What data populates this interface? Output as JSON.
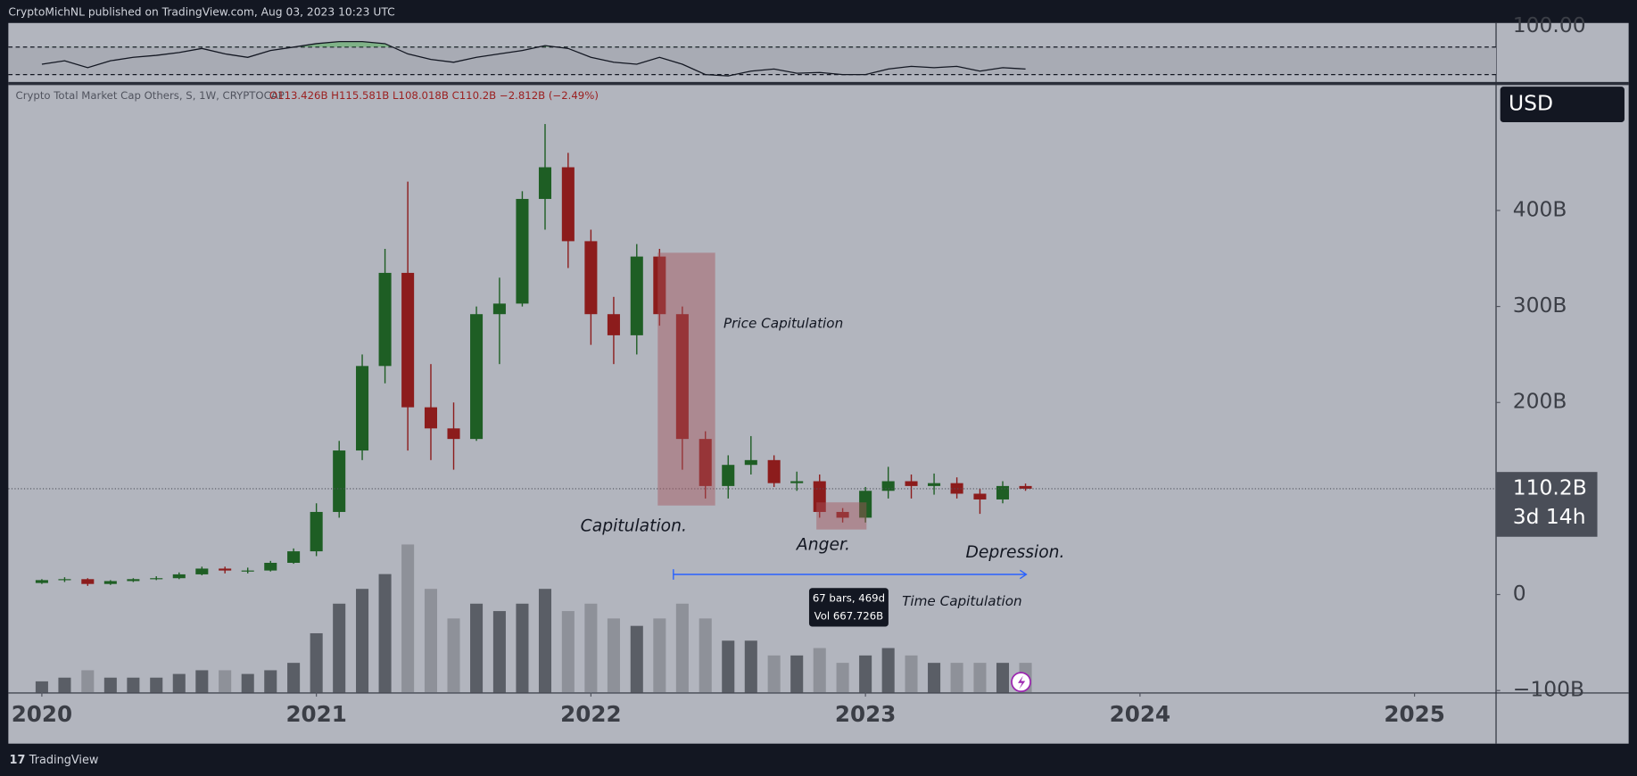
{
  "header": {
    "publisher": "CryptoMichNL published on TradingView.com, Aug 03, 2023 10:23 UTC"
  },
  "footer": {
    "brand": "TradingView"
  },
  "chart_data": {
    "type": "candlestick",
    "symbol": "Crypto Total Market Cap Others, S, 1W, CRYPTOCAP",
    "ohlc_legend": "O113.426B H115.581B L108.018B C110.2B −2.812B (−2.49%)",
    "currency": "USD",
    "last_price_label": "110.2B",
    "countdown": "3d 14h",
    "x": [
      2020,
      2020.083,
      2020.167,
      2020.25,
      2020.333,
      2020.417,
      2020.5,
      2020.583,
      2020.667,
      2020.75,
      2020.833,
      2020.917,
      2021,
      2021.083,
      2021.167,
      2021.25,
      2021.333,
      2021.417,
      2021.5,
      2021.583,
      2021.667,
      2021.75,
      2021.833,
      2021.917,
      2022,
      2022.083,
      2022.167,
      2022.25,
      2022.333,
      2022.417,
      2022.5,
      2022.583,
      2022.667,
      2022.75,
      2022.833,
      2022.917,
      2023,
      2023.083,
      2023.167,
      2023.25,
      2023.333,
      2023.417,
      2023.5,
      2023.583
    ],
    "open": [
      12,
      15,
      16,
      11,
      14,
      16,
      17,
      21,
      27,
      25,
      25,
      33,
      45,
      86,
      150,
      238,
      335,
      195,
      173,
      162,
      292,
      303,
      412,
      445,
      368,
      292,
      270,
      352,
      292,
      162,
      113,
      135,
      140,
      116,
      118,
      86,
      80,
      108,
      118,
      113,
      116,
      105,
      99,
      113
    ],
    "high": [
      16,
      18,
      17,
      15,
      17,
      19,
      23,
      29,
      29,
      28,
      35,
      48,
      95,
      160,
      250,
      360,
      430,
      240,
      200,
      300,
      330,
      420,
      490,
      460,
      380,
      310,
      365,
      360,
      300,
      170,
      145,
      165,
      145,
      128,
      125,
      90,
      112,
      133,
      125,
      126,
      122,
      110,
      118,
      115.581
    ],
    "low": [
      11,
      13,
      9,
      10,
      13,
      15,
      16,
      20,
      22,
      22,
      24,
      32,
      40,
      80,
      140,
      220,
      150,
      140,
      130,
      160,
      240,
      300,
      380,
      340,
      260,
      240,
      250,
      280,
      130,
      100,
      100,
      125,
      112,
      108,
      80,
      75,
      75,
      100,
      100,
      104,
      100,
      84,
      95,
      108.018
    ],
    "close": [
      15,
      16,
      11,
      14,
      16,
      17,
      21,
      27,
      25,
      25,
      33,
      45,
      86,
      150,
      238,
      335,
      195,
      173,
      162,
      292,
      303,
      412,
      445,
      368,
      292,
      270,
      352,
      292,
      162,
      113,
      135,
      140,
      116,
      118,
      86,
      80,
      108,
      118,
      113,
      116,
      105,
      99,
      113,
      110.2
    ],
    "volume": [
      1.5,
      2,
      3,
      2,
      2,
      2,
      2.5,
      3,
      3,
      2.5,
      3,
      4,
      8,
      12,
      14,
      16,
      20,
      14,
      10,
      12,
      11,
      12,
      14,
      11,
      12,
      10,
      9,
      10,
      12,
      10,
      7,
      7,
      5,
      5,
      6,
      4,
      5,
      6,
      5,
      4,
      4,
      4,
      4,
      4
    ],
    "vlim": [
      0,
      24
    ],
    "up_color": "#1e5e24",
    "down_color": "#8c1c1c",
    "xlim": [
      2019.878,
      2025.297
    ],
    "xticks": [
      2020,
      2021,
      2022,
      2023,
      2024,
      2025
    ],
    "ylim": [
      -102,
      530
    ],
    "yticks": [
      {
        "value": -100,
        "label": "−100B"
      },
      0,
      {
        "value": 200,
        "label": "200B"
      },
      {
        "value": 300,
        "label": "300B"
      },
      {
        "value": 400,
        "label": "400B"
      }
    ],
    "annotations": [
      "Price Capitulation",
      "Capitulation.",
      "Anger.",
      "Depression.",
      "Time Capitulation"
    ],
    "measure": {
      "bars": "67 bars, 469d",
      "volume": "Vol 667.726B"
    },
    "rsi": {
      "values": [
        45,
        50,
        40,
        50,
        55,
        58,
        62,
        68,
        60,
        55,
        65,
        70,
        75,
        78,
        78,
        75,
        60,
        52,
        48,
        55,
        60,
        65,
        72,
        68,
        55,
        48,
        45,
        55,
        45,
        30,
        28,
        35,
        38,
        32,
        33,
        30,
        30,
        38,
        42,
        40,
        42,
        35,
        40,
        38
      ],
      "ylim": [
        20,
        105
      ],
      "yticks": [
        {
          "value": 100,
          "label": "100.00"
        }
      ],
      "levels": [
        70,
        30
      ]
    }
  }
}
